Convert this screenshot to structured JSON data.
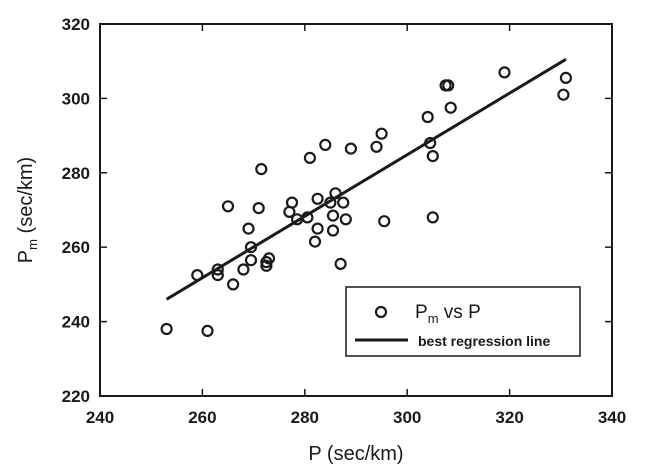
{
  "chart_data": {
    "type": "scatter",
    "xlabel": "P (sec/km)",
    "ylabel": {
      "main": "P",
      "sub": "m",
      "rest": " (sec/km)"
    },
    "xlim": [
      240,
      340
    ],
    "ylim": [
      220,
      320
    ],
    "xticks": [
      "240",
      "260",
      "280",
      "300",
      "320",
      "340"
    ],
    "yticks": [
      "220",
      "240",
      "260",
      "280",
      "300",
      "320"
    ],
    "grid": false,
    "legend_position": "bottom-right",
    "series": [
      {
        "kind": "points",
        "legend": {
          "main": "P",
          "sub": "m",
          "rest": " vs P"
        },
        "marker": "open-circle",
        "points": [
          [
            253,
            238
          ],
          [
            259,
            252.5
          ],
          [
            261,
            237.5
          ],
          [
            263,
            254
          ],
          [
            263,
            252.5
          ],
          [
            265,
            271
          ],
          [
            266,
            250
          ],
          [
            268,
            254
          ],
          [
            269,
            265
          ],
          [
            269.5,
            260
          ],
          [
            269.5,
            256.5
          ],
          [
            271,
            270.5
          ],
          [
            271.5,
            281
          ],
          [
            272.5,
            255
          ],
          [
            272.5,
            256
          ],
          [
            273,
            257
          ],
          [
            277,
            269.5
          ],
          [
            277.5,
            272
          ],
          [
            278.5,
            267.5
          ],
          [
            280.5,
            268
          ],
          [
            281,
            284
          ],
          [
            282,
            261.5
          ],
          [
            282.5,
            273
          ],
          [
            282.5,
            265
          ],
          [
            284,
            287.5
          ],
          [
            285,
            272
          ],
          [
            285.5,
            264.5
          ],
          [
            285.5,
            268.5
          ],
          [
            286,
            274.5
          ],
          [
            287,
            255.5
          ],
          [
            287.5,
            272
          ],
          [
            288,
            267.5
          ],
          [
            289,
            286.5
          ],
          [
            294,
            287
          ],
          [
            295,
            290.5
          ],
          [
            295.5,
            267
          ],
          [
            304,
            295
          ],
          [
            304.5,
            288
          ],
          [
            305,
            284.5
          ],
          [
            305,
            268
          ],
          [
            307.5,
            303.5
          ],
          [
            308,
            303.5
          ],
          [
            308.5,
            297.5
          ],
          [
            319,
            307
          ],
          [
            330.5,
            301
          ],
          [
            331,
            305.5
          ]
        ]
      },
      {
        "kind": "line",
        "legend": {
          "main": "best regression line"
        },
        "points": [
          [
            253,
            246
          ],
          [
            331,
            310.5
          ]
        ]
      }
    ]
  }
}
